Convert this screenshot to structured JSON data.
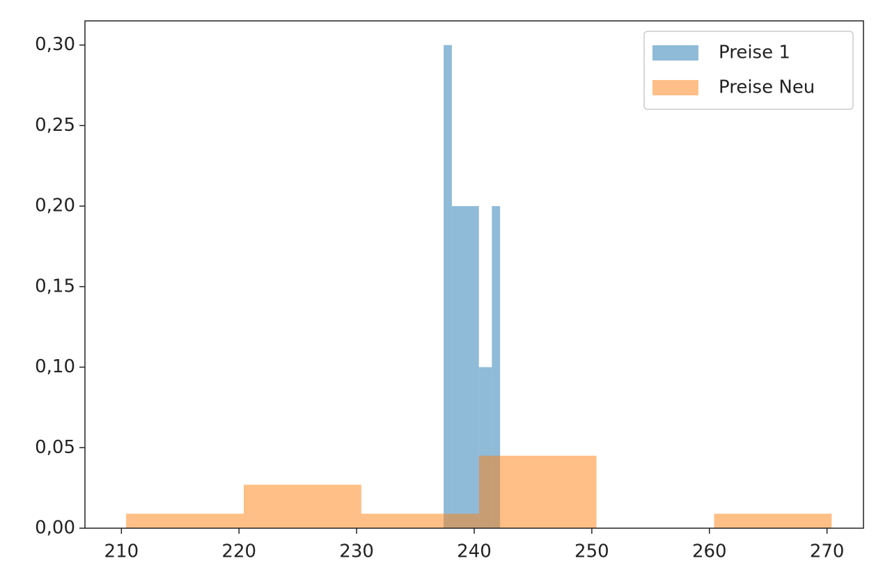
{
  "chart_data": {
    "type": "histogram",
    "series": [
      {
        "name": "Preise 1",
        "color": "#1f77b4",
        "alpha": 0.5,
        "bins": [
          237.4,
          238.1,
          240.4,
          241.5,
          242.2
        ],
        "values": [
          0.3,
          0.2,
          0.1,
          0.2
        ]
      },
      {
        "name": "Preise Neu",
        "color": "#ff7f0e",
        "alpha": 0.5,
        "bins": [
          210.4,
          220.4,
          230.4,
          240.4,
          250.4,
          260.4,
          270.4
        ],
        "values": [
          0.009,
          0.027,
          0.009,
          0.045,
          0,
          0.009
        ]
      }
    ],
    "xlim": [
      206.9,
      273.1
    ],
    "ylim": [
      0,
      0.315
    ],
    "xticks": [
      210,
      220,
      230,
      240,
      250,
      260,
      270
    ],
    "yticks": [
      {
        "value": 0,
        "label": "0,00"
      },
      {
        "value": 0.05,
        "label": "0,05"
      },
      {
        "value": 0.1,
        "label": "0,10"
      },
      {
        "value": 0.15,
        "label": "0,15"
      },
      {
        "value": 0.2,
        "label": "0,20"
      },
      {
        "value": 0.25,
        "label": "0,25"
      },
      {
        "value": 0.3,
        "label": "0,30"
      }
    ],
    "legend": "upper right"
  }
}
